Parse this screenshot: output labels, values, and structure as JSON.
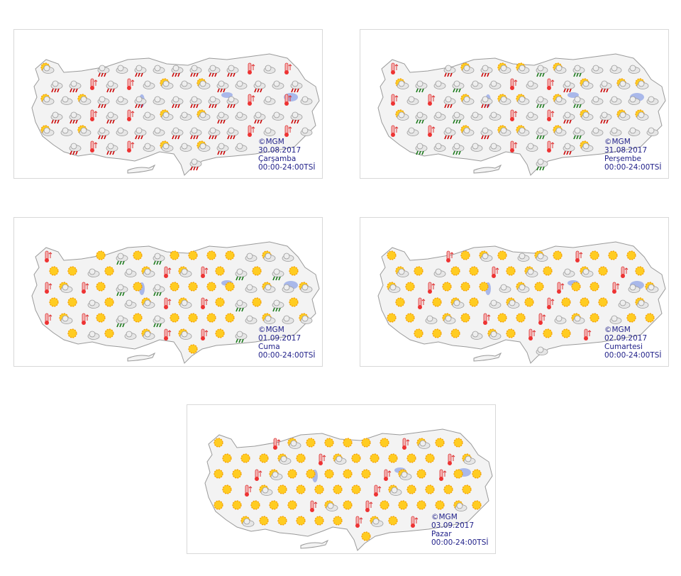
{
  "panels": [
    {
      "credit": "©MGM",
      "date": "30.08.2017",
      "day": "Çarşamba",
      "time": "00:00-24:00TSİ"
    },
    {
      "credit": "©MGM",
      "date": "31.08.2017",
      "day": "Perşembe",
      "time": "00:00-24:00TSİ"
    },
    {
      "credit": "©MGM",
      "date": "01.09.2017",
      "day": "Cuma",
      "time": "00:00-24:00TSİ"
    },
    {
      "credit": "©MGM",
      "date": "02.09.2017",
      "day": "Cumartesi",
      "time": "00:00-24:00TSİ"
    },
    {
      "credit": "©MGM",
      "date": "03.09.2017",
      "day": "Pazar",
      "time": "00:00-24:00TSİ"
    }
  ]
}
